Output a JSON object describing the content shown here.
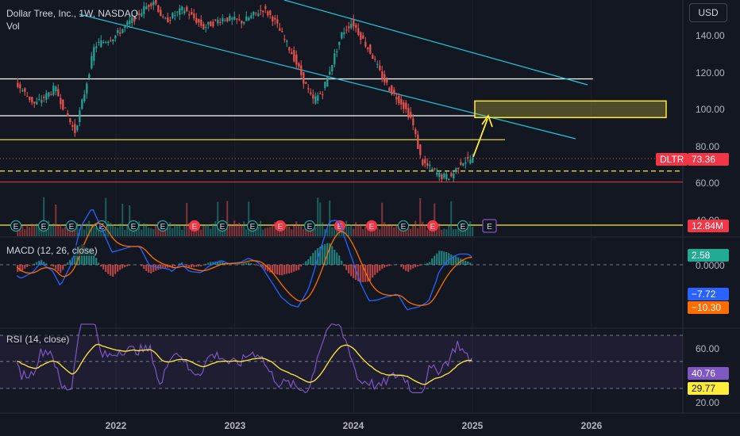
{
  "header": {
    "title": "Dollar Tree, Inc., 1W, NASDAQ",
    "vol_label": "Vol",
    "currency_button": "USD"
  },
  "price_axis": {
    "ticks": [
      "140.00",
      "120.00",
      "100.00",
      "80.00",
      "60.00",
      "40.00"
    ],
    "ticker_tag": "DLTR",
    "last_price": "73.36",
    "volume_tag": "12.84M"
  },
  "macd": {
    "title": "MACD (12, 26, close)",
    "hist_value": "2.58",
    "zero_tick": "0.0000",
    "macd_value": "−7.72",
    "signal_value": "−10.30"
  },
  "rsi": {
    "title": "RSI (14, close)",
    "ticks": [
      "60.00",
      "20.00"
    ],
    "rsi_value": "40.76",
    "ma_value": "29.77"
  },
  "time_axis": {
    "ticks": [
      "2022",
      "2023",
      "2024",
      "2025",
      "2026"
    ]
  },
  "colors": {
    "background": "#131722",
    "up": "#26a69a",
    "down": "#ef5350",
    "channel": "#26c6da",
    "support": "#ffffff",
    "highlight": "#ffeb3b",
    "rsi_line": "#7e57c2",
    "rsi_ma": "#ffeb3b",
    "macd_line": "#2962ff",
    "signal_line": "#ff6d00"
  },
  "chart_data": {
    "type": "candlestick",
    "symbol": "DLTR",
    "interval": "1W",
    "x_range": [
      "2021-03",
      "2026-03"
    ],
    "y_range": [
      40,
      150
    ],
    "price_path": [
      [
        "2021-03",
        115
      ],
      [
        "2021-05",
        103
      ],
      [
        "2021-07",
        112
      ],
      [
        "2021-09",
        88
      ],
      [
        "2021-10",
        110
      ],
      [
        "2021-11",
        135
      ],
      [
        "2022-01",
        140
      ],
      [
        "2022-03",
        150
      ],
      [
        "2022-05",
        160
      ],
      [
        "2022-06",
        148
      ],
      [
        "2022-08",
        155
      ],
      [
        "2022-10",
        145
      ],
      [
        "2022-12",
        150
      ],
      [
        "2023-02",
        148
      ],
      [
        "2023-04",
        155
      ],
      [
        "2023-05",
        150
      ],
      [
        "2023-07",
        130
      ],
      [
        "2023-09",
        105
      ],
      [
        "2023-10",
        110
      ],
      [
        "2023-12",
        142
      ],
      [
        "2024-01",
        148
      ],
      [
        "2024-03",
        130
      ],
      [
        "2024-04",
        118
      ],
      [
        "2024-05",
        110
      ],
      [
        "2024-06",
        104
      ],
      [
        "2024-07",
        95
      ],
      [
        "2024-08",
        72
      ],
      [
        "2024-09",
        68
      ],
      [
        "2024-10",
        64
      ],
      [
        "2024-11",
        64
      ],
      [
        "2024-12",
        72
      ],
      [
        "2025-01",
        73.36
      ]
    ],
    "horizontal_levels": [
      117,
      97,
      84,
      67,
      61
    ],
    "highlight_zone": [
      96,
      105
    ],
    "volume_last": 12840000,
    "macd": {
      "hist": 2.58,
      "macd": -7.72,
      "signal": -10.3
    },
    "rsi": {
      "rsi": 40.76,
      "ma": 29.77
    }
  }
}
